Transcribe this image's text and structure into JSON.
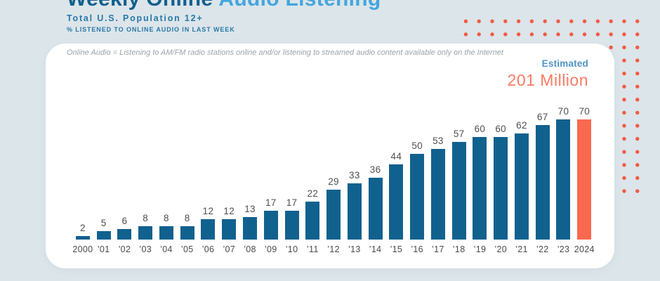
{
  "header": {
    "title_primary": "Weekly Online",
    "title_secondary": "Audio Listening",
    "subtitle": "Total U.S. Population 12+",
    "subsubtitle": "% LISTENED TO ONLINE AUDIO IN LAST WEEK"
  },
  "card": {
    "note": "Online Audio = Listening to AM/FM radio stations online and/or listening to streamed audio content available only on the Internet",
    "estimated_label": "Estimated",
    "estimated_value": "201 Million"
  },
  "chart_data": {
    "type": "bar",
    "title": "Weekly Online Audio Listening",
    "subtitle": "Total U.S. Population 12+ : % listened to online audio in last week",
    "xlabel": "",
    "ylabel": "% listened in last week",
    "ylim": [
      0,
      70
    ],
    "grid": false,
    "value_labels": true,
    "categories": [
      "2000",
      "’01",
      "’02",
      "’03",
      "’04",
      "’05",
      "’06",
      "’07",
      "’08",
      "’09",
      "’10",
      "’11",
      "’12",
      "’13",
      "’14",
      "’15",
      "’16",
      "’17",
      "’18",
      "’19",
      "’20",
      "’21",
      "’22",
      "’23",
      "2024"
    ],
    "values": [
      2,
      5,
      6,
      8,
      8,
      8,
      12,
      12,
      13,
      17,
      17,
      22,
      29,
      33,
      36,
      44,
      50,
      53,
      57,
      60,
      60,
      62,
      67,
      70,
      70
    ],
    "highlight_index": 24,
    "highlight_annotation": "Estimated 201 Million",
    "bar_color": "#11618E",
    "highlight_color": "#F8694F"
  },
  "colors": {
    "background": "#DCE5EA",
    "card": "#FFFFFF",
    "bar_blue": "#11618E",
    "coral": "#F8694F",
    "dots_coral": "#F4573F",
    "title_dark_blue": "#12608C",
    "title_light_blue": "#45A5DE",
    "subtitle_blue": "#2878A8",
    "estimated_label_blue": "#4E94C6",
    "estimated_value_coral": "#F87B64",
    "axis_label_gray": "#4A4A4A",
    "note_gray": "#9AA3AB"
  }
}
